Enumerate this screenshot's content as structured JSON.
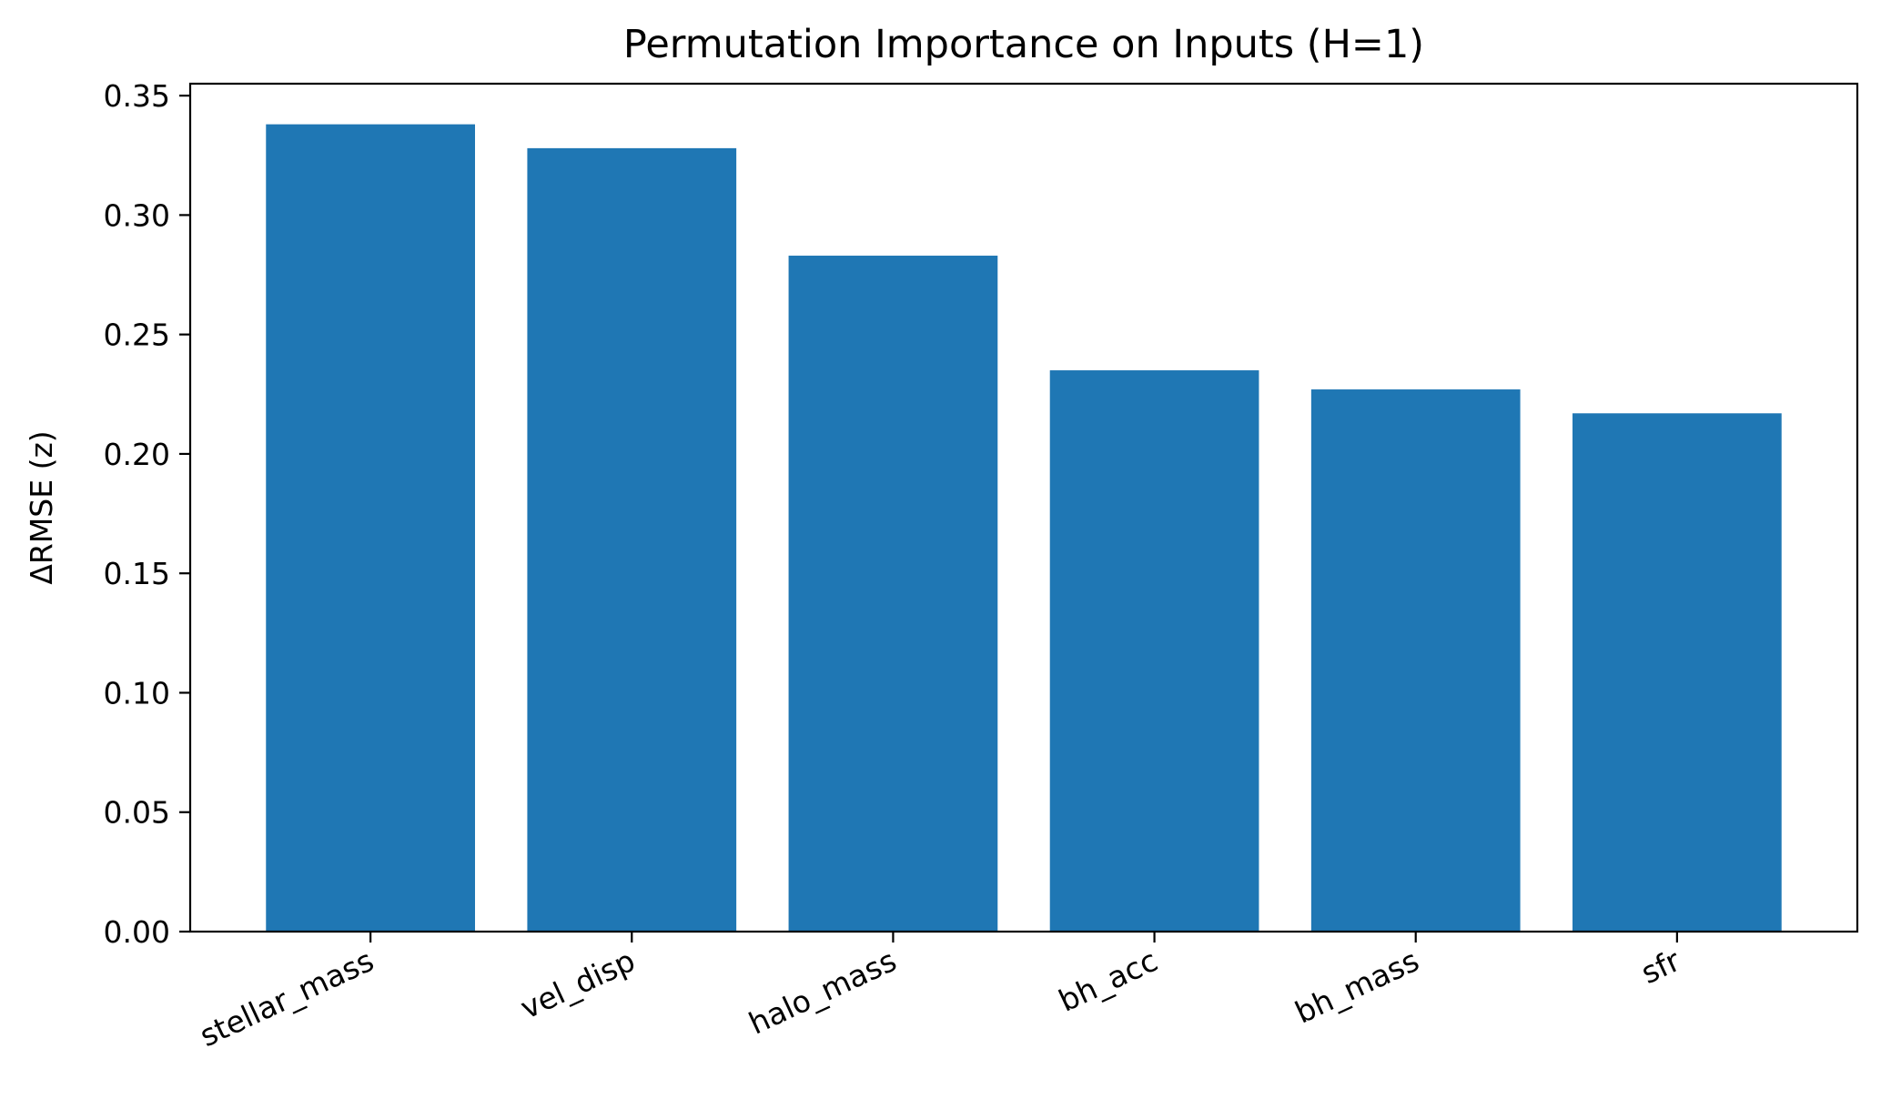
{
  "chart_data": {
    "type": "bar",
    "title": "Permutation Importance on Inputs (H=1)",
    "xlabel": "",
    "ylabel": "ΔRMSE (z)",
    "categories": [
      "stellar_mass",
      "vel_disp",
      "halo_mass",
      "bh_acc",
      "bh_mass",
      "sfr"
    ],
    "values": [
      0.338,
      0.328,
      0.283,
      0.235,
      0.227,
      0.217
    ],
    "ylim": [
      0,
      0.355
    ],
    "yticks": [
      "0.00",
      "0.05",
      "0.10",
      "0.15",
      "0.20",
      "0.25",
      "0.30",
      "0.35"
    ],
    "bar_color": "#1f77b4",
    "grid": false,
    "legend": "none"
  }
}
